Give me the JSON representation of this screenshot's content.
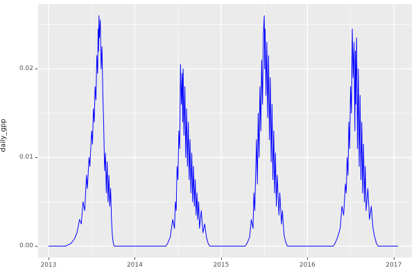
{
  "chart_data": {
    "type": "line",
    "title": "",
    "xlabel": "",
    "ylabel": "daily_gpp",
    "legend": "none",
    "grid": "on",
    "panel_bg": "#EBEBEB",
    "grid_color": "#FFFFFF",
    "line_color": "#0000FF",
    "tick_label_color": "#4D4D4D",
    "xlim": [
      2012.88,
      2017.21
    ],
    "ylim": [
      -0.0013,
      0.0273
    ],
    "x_ticks": [
      2013,
      2014,
      2015,
      2016,
      2017
    ],
    "x_tick_labels": [
      "2013",
      "2014",
      "2015",
      "2016",
      "2017"
    ],
    "y_ticks": [
      0.0,
      0.01,
      0.02
    ],
    "y_tick_labels": [
      "0.00",
      "0.01",
      "0.02"
    ],
    "x_minor_ticks": [
      2013.5,
      2014.5,
      2015.5,
      2016.5
    ],
    "y_minor_ticks": [
      0.005,
      0.015,
      0.025
    ],
    "series": [
      {
        "name": "daily_gpp",
        "points": [
          [
            2013.0,
            0
          ],
          [
            2013.2,
            0
          ],
          [
            2013.26,
            0.0003
          ],
          [
            2013.3,
            0.0008
          ],
          [
            2013.33,
            0.0015
          ],
          [
            2013.36,
            0.003
          ],
          [
            2013.38,
            0.0025
          ],
          [
            2013.4,
            0.005
          ],
          [
            2013.42,
            0.004
          ],
          [
            2013.44,
            0.008
          ],
          [
            2013.45,
            0.0065
          ],
          [
            2013.47,
            0.01
          ],
          [
            2013.48,
            0.009
          ],
          [
            2013.5,
            0.013
          ],
          [
            2013.51,
            0.0115
          ],
          [
            2013.52,
            0.0155
          ],
          [
            2013.53,
            0.014
          ],
          [
            2013.54,
            0.018
          ],
          [
            2013.55,
            0.0165
          ],
          [
            2013.56,
            0.0215
          ],
          [
            2013.57,
            0.0195
          ],
          [
            2013.575,
            0.0245
          ],
          [
            2013.58,
            0.022
          ],
          [
            2013.585,
            0.026
          ],
          [
            2013.59,
            0.0235
          ],
          [
            2013.6,
            0.0255
          ],
          [
            2013.61,
            0.02
          ],
          [
            2013.62,
            0.0225
          ],
          [
            2013.63,
            0.017
          ],
          [
            2013.64,
            0.0135
          ],
          [
            2013.65,
            0.0085
          ],
          [
            2013.66,
            0.0105
          ],
          [
            2013.67,
            0.006
          ],
          [
            2013.68,
            0.0095
          ],
          [
            2013.69,
            0.005
          ],
          [
            2013.7,
            0.008
          ],
          [
            2013.71,
            0.0045
          ],
          [
            2013.72,
            0.0065
          ],
          [
            2013.73,
            0.003
          ],
          [
            2013.74,
            0.0012
          ],
          [
            2013.75,
            0.0004
          ],
          [
            2013.76,
            0
          ],
          [
            2014.36,
            0
          ],
          [
            2014.38,
            0.0003
          ],
          [
            2014.41,
            0.001
          ],
          [
            2014.44,
            0.003
          ],
          [
            2014.46,
            0.002
          ],
          [
            2014.47,
            0.005
          ],
          [
            2014.48,
            0.004
          ],
          [
            2014.49,
            0.009
          ],
          [
            2014.5,
            0.0075
          ],
          [
            2014.51,
            0.013
          ],
          [
            2014.52,
            0.011
          ],
          [
            2014.53,
            0.0205
          ],
          [
            2014.54,
            0.016
          ],
          [
            2014.55,
            0.0195
          ],
          [
            2014.555,
            0.014
          ],
          [
            2014.56,
            0.02
          ],
          [
            2014.57,
            0.0125
          ],
          [
            2014.58,
            0.018
          ],
          [
            2014.59,
            0.01
          ],
          [
            2014.6,
            0.0155
          ],
          [
            2014.61,
            0.009
          ],
          [
            2014.62,
            0.014
          ],
          [
            2014.63,
            0.0075
          ],
          [
            2014.64,
            0.012
          ],
          [
            2014.65,
            0.006
          ],
          [
            2014.66,
            0.0105
          ],
          [
            2014.67,
            0.005
          ],
          [
            2014.68,
            0.009
          ],
          [
            2014.69,
            0.0045
          ],
          [
            2014.7,
            0.0075
          ],
          [
            2014.71,
            0.0035
          ],
          [
            2014.72,
            0.006
          ],
          [
            2014.73,
            0.003
          ],
          [
            2014.74,
            0.005
          ],
          [
            2014.75,
            0.002
          ],
          [
            2014.77,
            0.004
          ],
          [
            2014.79,
            0.0015
          ],
          [
            2014.81,
            0.0025
          ],
          [
            2014.83,
            0.001
          ],
          [
            2014.85,
            0.0003
          ],
          [
            2014.87,
            0
          ],
          [
            2015.28,
            0
          ],
          [
            2015.3,
            0.0003
          ],
          [
            2015.33,
            0.001
          ],
          [
            2015.35,
            0.003
          ],
          [
            2015.37,
            0.002
          ],
          [
            2015.38,
            0.006
          ],
          [
            2015.39,
            0.004
          ],
          [
            2015.41,
            0.012
          ],
          [
            2015.42,
            0.007
          ],
          [
            2015.43,
            0.015
          ],
          [
            2015.44,
            0.01
          ],
          [
            2015.45,
            0.018
          ],
          [
            2015.46,
            0.013
          ],
          [
            2015.47,
            0.021
          ],
          [
            2015.48,
            0.016
          ],
          [
            2015.49,
            0.024
          ],
          [
            2015.5,
            0.026
          ],
          [
            2015.505,
            0.02
          ],
          [
            2015.51,
            0.0245
          ],
          [
            2015.52,
            0.017
          ],
          [
            2015.53,
            0.023
          ],
          [
            2015.54,
            0.0145
          ],
          [
            2015.55,
            0.0215
          ],
          [
            2015.56,
            0.012
          ],
          [
            2015.57,
            0.019
          ],
          [
            2015.58,
            0.0095
          ],
          [
            2015.59,
            0.016
          ],
          [
            2015.6,
            0.0075
          ],
          [
            2015.61,
            0.013
          ],
          [
            2015.62,
            0.006
          ],
          [
            2015.63,
            0.0105
          ],
          [
            2015.64,
            0.0045
          ],
          [
            2015.65,
            0.008
          ],
          [
            2015.67,
            0.0035
          ],
          [
            2015.68,
            0.006
          ],
          [
            2015.7,
            0.0025
          ],
          [
            2015.71,
            0.004
          ],
          [
            2015.73,
            0.0012
          ],
          [
            2015.75,
            0.0004
          ],
          [
            2015.77,
            0
          ],
          [
            2016.3,
            0
          ],
          [
            2016.32,
            0.0003
          ],
          [
            2016.35,
            0.001
          ],
          [
            2016.38,
            0.002
          ],
          [
            2016.4,
            0.0045
          ],
          [
            2016.42,
            0.0035
          ],
          [
            2016.44,
            0.007
          ],
          [
            2016.45,
            0.006
          ],
          [
            2016.46,
            0.01
          ],
          [
            2016.47,
            0.008
          ],
          [
            2016.48,
            0.014
          ],
          [
            2016.49,
            0.011
          ],
          [
            2016.5,
            0.018
          ],
          [
            2016.51,
            0.015
          ],
          [
            2016.52,
            0.0245
          ],
          [
            2016.53,
            0.019
          ],
          [
            2016.54,
            0.023
          ],
          [
            2016.55,
            0.013
          ],
          [
            2016.555,
            0.022
          ],
          [
            2016.56,
            0.016
          ],
          [
            2016.57,
            0.0235
          ],
          [
            2016.58,
            0.011
          ],
          [
            2016.59,
            0.02
          ],
          [
            2016.6,
            0.009
          ],
          [
            2016.61,
            0.017
          ],
          [
            2016.62,
            0.0075
          ],
          [
            2016.63,
            0.014
          ],
          [
            2016.64,
            0.006
          ],
          [
            2016.65,
            0.0115
          ],
          [
            2016.66,
            0.005
          ],
          [
            2016.67,
            0.009
          ],
          [
            2016.68,
            0.004
          ],
          [
            2016.7,
            0.0065
          ],
          [
            2016.72,
            0.003
          ],
          [
            2016.74,
            0.0045
          ],
          [
            2016.76,
            0.002
          ],
          [
            2016.78,
            0.001
          ],
          [
            2016.8,
            0.0003
          ],
          [
            2016.82,
            0
          ],
          [
            2017.05,
            0
          ]
        ]
      }
    ]
  }
}
